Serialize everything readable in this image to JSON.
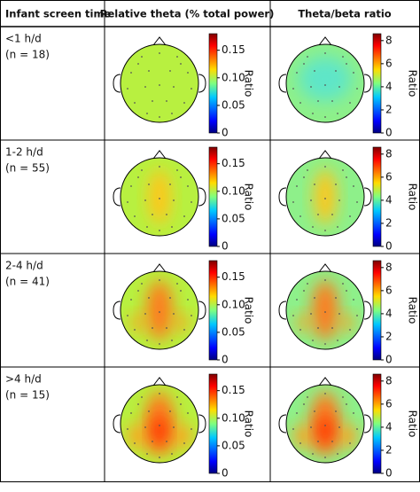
{
  "table": {
    "headers": [
      "Infant screen time",
      "Relative theta (% total power)",
      "Theta/beta ratio"
    ],
    "rows": [
      {
        "label": "<1 h/d",
        "n": "(n = 18)"
      },
      {
        "label": "1-2 h/d",
        "n": "(n = 55)"
      },
      {
        "label": "2-4 h/d",
        "n": "(n = 41)"
      },
      {
        "label": ">4 h/d",
        "n": "(n = 15)"
      }
    ],
    "colorbars": [
      {
        "label": "Ratio",
        "lim": [
          0,
          0.18
        ],
        "ticks": [
          0,
          0.05,
          {
            "value": 0.1,
            "label": "0.10"
          },
          0.15
        ]
      },
      {
        "label": "Ratio",
        "lim": [
          0,
          8.6
        ],
        "ticks": [
          0,
          2,
          4,
          6,
          8
        ]
      }
    ]
  }
}
